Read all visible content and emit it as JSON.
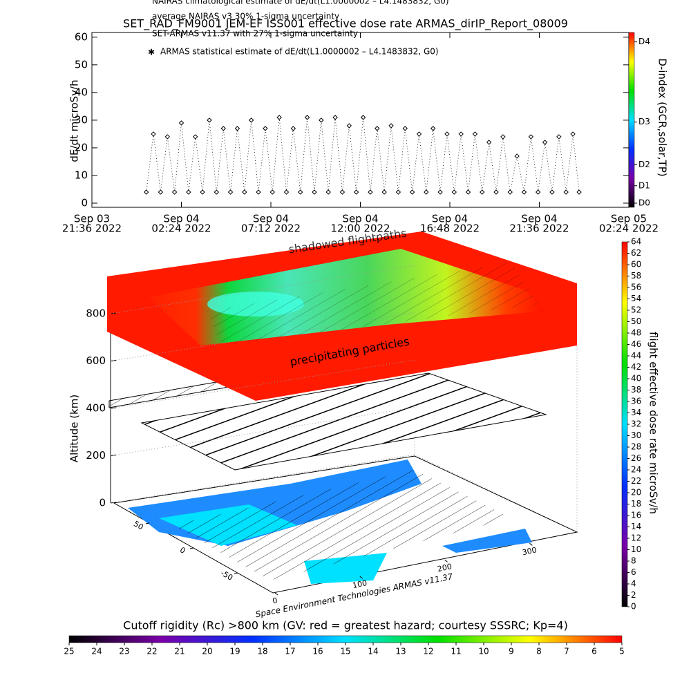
{
  "chart_data": [
    {
      "type": "timeseries",
      "title": "SET_RAD_FM9001  JEM-EF ISS001 effective dose rate ARMAS_dirIP_Report_08009",
      "y_label": "dE/dt microSv/h",
      "annotations": [
        "NAIRAS climatological estimate of dE/dt(L1.0000002 – L4.1483832, G0)",
        "average NAIRAS v3 30% 1-sigma uncertainty",
        "SET-ARMAS v11.37 with 27% 1-sigma uncertainty"
      ],
      "xlim": [
        "2022-09-03 21:36",
        "2022-09-05 02:24"
      ],
      "xticks": [
        {
          "value": "2022-09-03 21:36",
          "label": [
            "Sep 03",
            "21:36 2022"
          ]
        },
        {
          "value": "2022-09-04 02:24",
          "label": [
            "Sep 04",
            "02:24 2022"
          ]
        },
        {
          "value": "2022-09-04 07:12",
          "label": [
            "Sep 04",
            "07:12 2022"
          ]
        },
        {
          "value": "2022-09-04 12:00",
          "label": [
            "Sep 04",
            "12:00 2022"
          ]
        },
        {
          "value": "2022-09-04 16:48",
          "label": [
            "Sep 04",
            "16:48 2022"
          ]
        },
        {
          "value": "2022-09-04 21:36",
          "label": [
            "Sep 04",
            "21:36 2022"
          ]
        },
        {
          "value": "2022-09-05 02:24",
          "label": [
            "Sep 05",
            "02:24 2022"
          ]
        }
      ],
      "ylim": [
        -1.5,
        61.7
      ],
      "yticks": [
        0,
        10,
        20,
        30,
        40,
        50,
        60
      ],
      "series": [
        {
          "name": "ARMAS statistical estimate of dE/dt(L1.0000002 – L4.1483832, G0)",
          "color": "#000000",
          "x": [
            "2022-09-04 00:31",
            "2022-09-04 00:54",
            "2022-09-04 01:17",
            "2022-09-04 01:39",
            "2022-09-04 02:02",
            "2022-09-04 02:24",
            "2022-09-04 02:47",
            "2022-09-04 03:09",
            "2022-09-04 03:32",
            "2022-09-04 03:54",
            "2022-09-04 04:17",
            "2022-09-04 04:39",
            "2022-09-04 05:02",
            "2022-09-04 05:24",
            "2022-09-04 05:47",
            "2022-09-04 06:09",
            "2022-09-04 06:32",
            "2022-09-04 06:54",
            "2022-09-04 07:17",
            "2022-09-04 07:39",
            "2022-09-04 08:02",
            "2022-09-04 08:24",
            "2022-09-04 08:47",
            "2022-09-04 09:09",
            "2022-09-04 09:32",
            "2022-09-04 09:54",
            "2022-09-04 10:17",
            "2022-09-04 10:39",
            "2022-09-04 11:02",
            "2022-09-04 11:24",
            "2022-09-04 11:47",
            "2022-09-04 12:09",
            "2022-09-04 12:32",
            "2022-09-04 12:54",
            "2022-09-04 13:17",
            "2022-09-04 13:39",
            "2022-09-04 14:02",
            "2022-09-04 14:24",
            "2022-09-04 14:47",
            "2022-09-04 15:09",
            "2022-09-04 15:32",
            "2022-09-04 15:54",
            "2022-09-04 16:17",
            "2022-09-04 16:39",
            "2022-09-04 17:02",
            "2022-09-04 17:24",
            "2022-09-04 17:47",
            "2022-09-04 18:09",
            "2022-09-04 18:32",
            "2022-09-04 18:54",
            "2022-09-04 19:17",
            "2022-09-04 19:39",
            "2022-09-04 20:02",
            "2022-09-04 20:24",
            "2022-09-04 20:47",
            "2022-09-04 21:09",
            "2022-09-04 21:32",
            "2022-09-04 21:54",
            "2022-09-04 22:17",
            "2022-09-04 22:39",
            "2022-09-04 23:02",
            "2022-09-04 23:24",
            "2022-09-04 23:44"
          ],
          "values": [
            4,
            25,
            4,
            24,
            4,
            29,
            4,
            24,
            4,
            30,
            4,
            27,
            4,
            27,
            4,
            30,
            4,
            27,
            4,
            31,
            4,
            27,
            4,
            31,
            4,
            30,
            4,
            31,
            4,
            28,
            4,
            31,
            4,
            27,
            4,
            28,
            4,
            27,
            4,
            25,
            4,
            27,
            4,
            25,
            4,
            25,
            4,
            25,
            4,
            22,
            4,
            24,
            4,
            17,
            4,
            24,
            4,
            22,
            4,
            24,
            4,
            25,
            4
          ]
        }
      ],
      "colorbar": {
        "label": "D-index (GCR,solar,TP)",
        "colors": [
          "#000000",
          "#7a00a8",
          "#0030ff",
          "#00e0ff",
          "#00e000",
          "#ffff00",
          "#ff0000"
        ],
        "ticks": [
          {
            "value": 0,
            "label": "D0"
          },
          {
            "value": 6.3,
            "label": "D1"
          },
          {
            "value": 13.9,
            "label": "D2"
          },
          {
            "value": 29.3,
            "label": "D3"
          },
          {
            "value": 58.3,
            "label": "D4"
          }
        ]
      }
    },
    {
      "type": "surface3d",
      "annotations": [
        "shadowed flightpaths",
        "precipitating particles",
        "Space Environment Technologies ARMAS v11.37"
      ],
      "z_label": "Altitude (km)",
      "zlim": [
        0,
        800
      ],
      "zticks": [
        0,
        200,
        400,
        600,
        800
      ],
      "lonlim": [
        0,
        360
      ],
      "lonticks": [
        0,
        100,
        200,
        300
      ],
      "latlim": [
        -90,
        90
      ],
      "latticks": [
        -50,
        0,
        50
      ],
      "colorbar": {
        "label": "flight effective dose rate microSv/h",
        "range": [
          0,
          64
        ],
        "colors": [
          "#000000",
          "#7a00a8",
          "#0030ff",
          "#00e0ff",
          "#00e000",
          "#ffff00",
          "#ff0000"
        ],
        "ticks": [
          0,
          2,
          4,
          6,
          8,
          10,
          12,
          14,
          16,
          18,
          20,
          22,
          24,
          26,
          28,
          30,
          32,
          34,
          36,
          38,
          40,
          42,
          44,
          46,
          48,
          50,
          52,
          54,
          56,
          58,
          60,
          62,
          64
        ]
      },
      "rigidity_bar": {
        "title": "Cutoff rigidity (Rc) >800 km (GV: red = greatest hazard; courtesy SSSRC; Kp=4)",
        "range": [
          25,
          5
        ],
        "colors": [
          "#000000",
          "#7a00a8",
          "#0030ff",
          "#00e0ff",
          "#00e000",
          "#ffff00",
          "#ff0000"
        ],
        "ticks": [
          25,
          24,
          23,
          22,
          21,
          20,
          19,
          18,
          17,
          16,
          15,
          14,
          13,
          12,
          11,
          10,
          9,
          8,
          7,
          6,
          5
        ]
      }
    }
  ]
}
